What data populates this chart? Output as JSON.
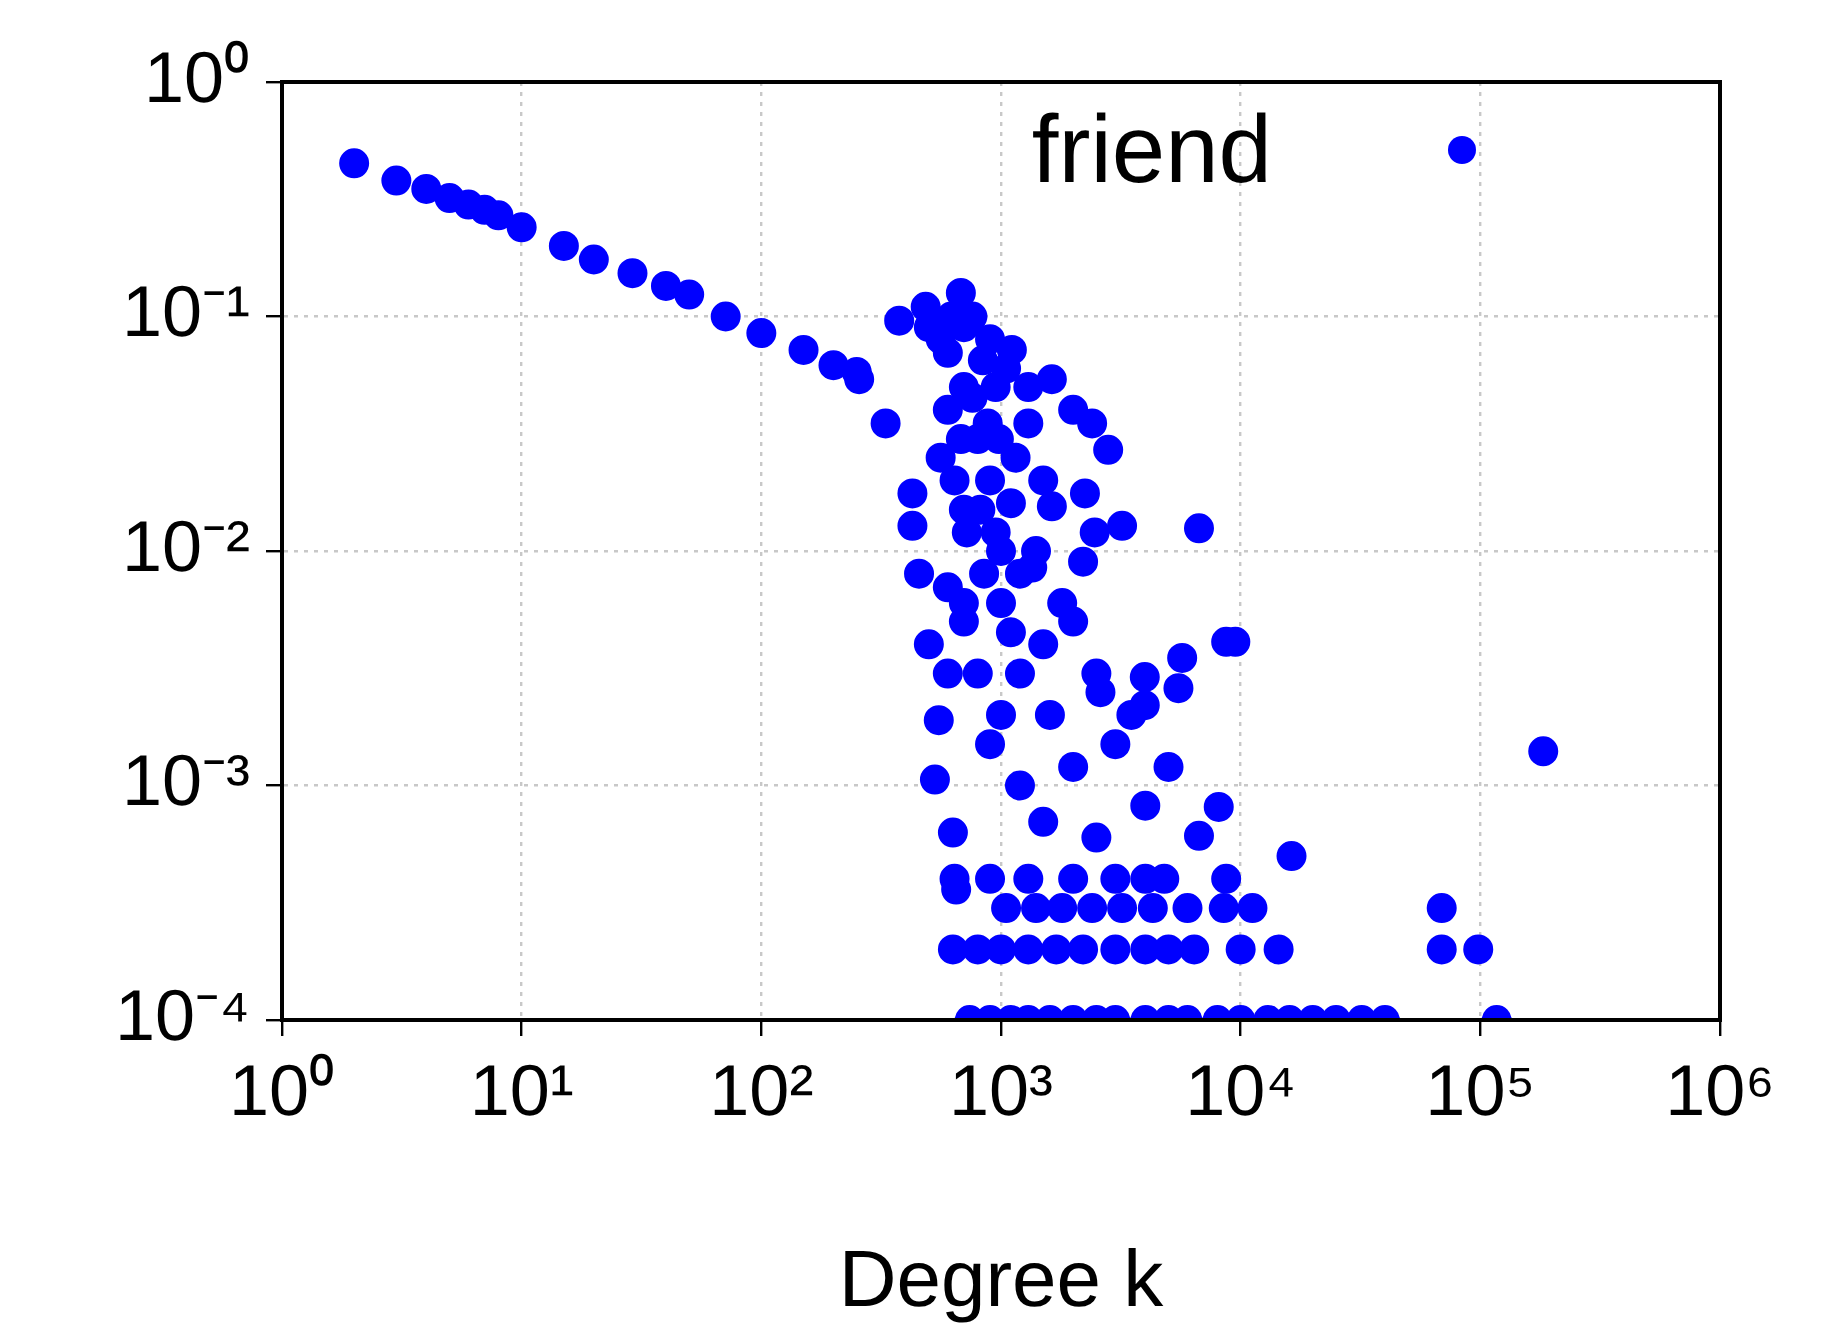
{
  "chart_data": {
    "type": "scatter",
    "xlabel": "Degree k",
    "log": "xy",
    "grid": true,
    "legend": "top right",
    "marker": "circle",
    "xlim": [
      1,
      1000000
    ],
    "xticks": [
      {
        "value": 1,
        "label": "10⁰"
      },
      {
        "value": 10,
        "label": "10¹"
      },
      {
        "value": 100,
        "label": "10²"
      },
      {
        "value": 1000,
        "label": "10³"
      },
      {
        "value": 10000,
        "label": "10⁴"
      },
      {
        "value": 100000,
        "label": "10⁵"
      },
      {
        "value": 1000000,
        "label": "10⁶"
      }
    ],
    "ylim": [
      0.0001,
      1
    ],
    "yticks": [
      {
        "value": 0.0001,
        "label": "10⁻⁴"
      },
      {
        "value": 0.001,
        "label": "10⁻³"
      },
      {
        "value": 0.01,
        "label": "10⁻²"
      },
      {
        "value": 0.1,
        "label": "10⁻¹"
      },
      {
        "value": 1,
        "label": "10⁰"
      }
    ],
    "series": [
      {
        "name": "friend",
        "color": "#0000ff",
        "x": [
          500,
          560,
          620,
          700,
          760,
          840,
          950,
          1050,
          600,
          680,
          760,
          880,
          980,
          1150,
          1300,
          560,
          640,
          720,
          820,
          950,
          1100,
          1400,
          600,
          700,
          850,
          1000,
          1200,
          1600,
          2000,
          2600,
          2,
          3,
          4,
          5,
          6,
          7,
          8,
          10,
          15,
          20,
          29,
          40,
          50,
          71,
          100,
          150,
          200,
          250,
          330,
          376,
          485,
          680,
          1110,
          1630,
          2400,
          2800,
          2460,
          3200,
          2240,
          1630,
          427,
          427,
          455,
          500,
          550,
          530,
          630,
          650,
          256,
          6700,
          8700,
          9500,
          5700,
          5500,
          3980,
          3980,
          8100,
          6700,
          4000,
          5000,
          16300,
          183000,
          700,
          800,
          900,
          1000,
          700,
          800,
          1000,
          1200,
          900,
          1500,
          1200,
          1500,
          2000,
          1300,
          900,
          600,
          1800,
          2500,
          3000,
          2000,
          1500,
          2500,
          3500,
          2200,
          700,
          600,
          1100,
          1350,
          640,
          900,
          1300,
          2000,
          3000,
          4000,
          4800,
          8700,
          1050,
          1400,
          1800,
          2400,
          3200,
          4300,
          6000,
          8500,
          11200,
          69000,
          630,
          800,
          1000,
          1300,
          1700,
          2200,
          3000,
          4000,
          5000,
          6400,
          10000,
          14400,
          69000,
          98000,
          740,
          900,
          1100,
          1300,
          1600,
          2000,
          2500,
          3000,
          4000,
          5000,
          6000,
          8000,
          10000,
          13000,
          16000,
          20000,
          25000,
          32000,
          40000,
          117000
        ],
        "values": [
          0.09,
          0.08,
          0.1,
          0.09,
          0.1,
          0.065,
          0.05,
          0.06,
          0.04,
          0.03,
          0.045,
          0.035,
          0.03,
          0.025,
          0.035,
          0.025,
          0.02,
          0.012,
          0.015,
          0.012,
          0.016,
          0.01,
          0.007,
          0.005,
          0.008,
          0.006,
          0.003,
          0.002,
          0.005,
          0.0025,
          0.45,
          0.38,
          0.35,
          0.32,
          0.3,
          0.285,
          0.27,
          0.24,
          0.2,
          0.175,
          0.153,
          0.135,
          0.124,
          0.1,
          0.085,
          0.072,
          0.062,
          0.058,
          0.035,
          0.096,
          0.11,
          0.126,
          0.072,
          0.054,
          0.035,
          0.027,
          0.012,
          0.0128,
          0.0176,
          0.0155,
          0.0176,
          0.0128,
          0.008,
          0.004,
          0.0019,
          0.00106,
          0.00063,
          0.00036,
          0.054,
          0.0125,
          0.0041,
          0.0041,
          0.0035,
          0.0026,
          0.0029,
          0.0022,
          0.00081,
          0.00061,
          0.00082,
          0.0012,
          0.0005,
          0.0014,
          0.05,
          0.03,
          0.02,
          0.01,
          0.006,
          0.003,
          0.002,
          0.001,
          0.0015,
          0.004,
          0.008,
          0.02,
          0.04,
          0.05,
          0.08,
          0.07,
          0.006,
          0.003,
          0.0015,
          0.0012,
          0.0007,
          0.0006,
          0.002,
          0.009,
          0.015,
          0.003,
          0.0045,
          0.0085,
          0.0004,
          0.0004,
          0.0004,
          0.0004,
          0.0004,
          0.0004,
          0.0004,
          0.0004,
          0.0003,
          0.0003,
          0.0003,
          0.0003,
          0.0003,
          0.0003,
          0.0003,
          0.0003,
          0.0003,
          0.0003,
          0.0002,
          0.0002,
          0.0002,
          0.0002,
          0.0002,
          0.0002,
          0.0002,
          0.0002,
          0.0002,
          0.0002,
          0.0002,
          0.0002,
          0.0002,
          0.0002,
          0.0001,
          0.0001,
          0.0001,
          0.0001,
          0.0001,
          0.0001,
          0.0001,
          0.0001,
          0.0001,
          0.0001,
          0.0001,
          0.0001,
          0.0001,
          0.0001,
          0.0001,
          0.0001,
          0.0001,
          0.0001,
          0.0001,
          0.0001
        ]
      }
    ]
  }
}
